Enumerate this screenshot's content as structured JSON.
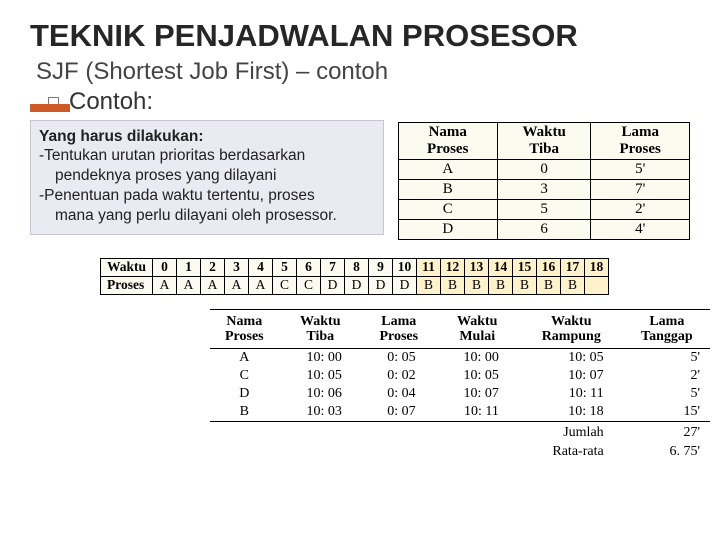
{
  "title": "TEKNIK PENJADWALAN PROSESOR",
  "subtitle": "SJF (Shortest Job First) – contoh",
  "bullet": "Contoh:",
  "instr": {
    "heading": "Yang harus dilakukan:",
    "l1": "-Tentukan urutan prioritas berdasarkan",
    "l1b": "pendeknya proses yang dilayani",
    "l2": "-Penentuan pada waktu tertentu, proses",
    "l2b": "mana yang perlu dilayani oleh prosessor."
  },
  "top_table": {
    "headers": [
      "Nama Proses",
      "Waktu Tiba",
      "Lama Proses"
    ],
    "rows": [
      [
        "A",
        "0",
        "5'"
      ],
      [
        "B",
        "3",
        "7'"
      ],
      [
        "C",
        "5",
        "2'"
      ],
      [
        "D",
        "6",
        "4'"
      ]
    ],
    "colors": {
      "bg": "#fbfbf0",
      "border": "#000000"
    }
  },
  "timeline": {
    "row_labels": [
      "Waktu",
      "Proses"
    ],
    "times": [
      "0",
      "1",
      "2",
      "3",
      "4",
      "5",
      "6",
      "7",
      "8",
      "9",
      "10",
      "11",
      "12",
      "13",
      "14",
      "15",
      "16",
      "17",
      "18"
    ],
    "procs": [
      "A",
      "A",
      "A",
      "A",
      "A",
      "C",
      "C",
      "D",
      "D",
      "D",
      "D",
      "B",
      "B",
      "B",
      "B",
      "B",
      "B",
      "B",
      ""
    ],
    "colors": {
      "yellow": "#fef2ca",
      "plain": "#fbfbf0"
    }
  },
  "result": {
    "headers": [
      "Nama\nProses",
      "Waktu\nTiba",
      "Lama\nProses",
      "Waktu\nMulai",
      "Waktu\nRampung",
      "Lama\nTanggap"
    ],
    "rows": [
      [
        "A",
        "10: 00",
        "0: 05",
        "10: 00",
        "10: 05",
        "5'"
      ],
      [
        "C",
        "10: 05",
        "0: 02",
        "10: 05",
        "10: 07",
        "2'"
      ],
      [
        "D",
        "10: 06",
        "0: 04",
        "10: 07",
        "10: 11",
        "5'"
      ],
      [
        "B",
        "10: 03",
        "0: 07",
        "10: 11",
        "10: 18",
        "15'"
      ]
    ],
    "sum_label": "Jumlah",
    "sum_val": "27'",
    "avg_label": "Rata-rata",
    "avg_val": "6. 75'"
  }
}
